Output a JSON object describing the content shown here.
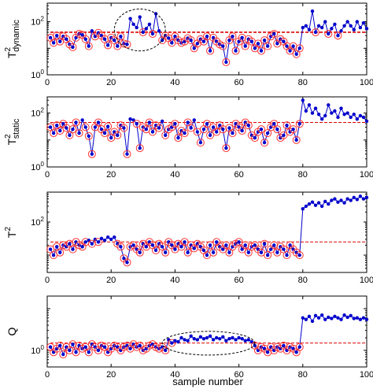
{
  "figure": {
    "x_tick_labels": [
      "0",
      "20",
      "40",
      "60",
      "80",
      "100"
    ],
    "x_axis_label": "sample number"
  },
  "chart_data": [
    {
      "type": "line",
      "ylabel": "T2 dynamic",
      "ylabel_main": "T",
      "ylabel_sup": "2",
      "ylabel_sub": "dynamic",
      "yscale": "log",
      "xlim": [
        0,
        100
      ],
      "ylim": [
        1,
        500
      ],
      "yticks": [
        {
          "value": 1,
          "base": "10",
          "exp": "0"
        },
        {
          "value": 100,
          "base": "10",
          "exp": "2"
        }
      ],
      "threshold": [
        40,
        40
      ],
      "annotation": {
        "shape": "dashed-ellipse",
        "x_range": [
          22,
          36
        ]
      },
      "x": [
        1,
        2,
        3,
        4,
        5,
        6,
        7,
        8,
        9,
        10,
        11,
        12,
        13,
        14,
        15,
        16,
        17,
        18,
        19,
        20,
        21,
        22,
        23,
        24,
        25,
        26,
        27,
        28,
        29,
        30,
        31,
        32,
        33,
        34,
        35,
        36,
        37,
        38,
        39,
        40,
        41,
        42,
        43,
        44,
        45,
        46,
        47,
        48,
        49,
        50,
        51,
        52,
        53,
        54,
        55,
        56,
        57,
        58,
        59,
        60,
        61,
        62,
        63,
        64,
        65,
        66,
        67,
        68,
        69,
        70,
        71,
        72,
        73,
        74,
        75,
        76,
        77,
        78,
        79,
        80,
        81,
        82,
        83,
        84,
        85,
        86,
        87,
        88,
        89,
        90,
        91,
        92,
        93,
        94,
        95,
        96,
        97,
        98,
        99,
        100
      ],
      "values": [
        25,
        16,
        30,
        18,
        28,
        22,
        14,
        11,
        25,
        35,
        32,
        22,
        12,
        45,
        28,
        38,
        30,
        22,
        13,
        25,
        20,
        12,
        28,
        15,
        14,
        130,
        80,
        60,
        150,
        40,
        55,
        80,
        35,
        200,
        45,
        20,
        30,
        24,
        16,
        28,
        20,
        16,
        18,
        24,
        20,
        10,
        15,
        22,
        18,
        28,
        8,
        25,
        18,
        14,
        12,
        3,
        20,
        28,
        8,
        18,
        25,
        12,
        22,
        18,
        10,
        15,
        8,
        20,
        12,
        28,
        35,
        15,
        22,
        18,
        12,
        8,
        12,
        6,
        10,
        60,
        70,
        50,
        250,
        40,
        70,
        60,
        100,
        35,
        55,
        80,
        30,
        45,
        70,
        100,
        70,
        50,
        100,
        60,
        90,
        55
      ]
    },
    {
      "type": "line",
      "ylabel": "T2 static",
      "ylabel_main": "T",
      "ylabel_sup": "2",
      "ylabel_sub": "static",
      "yscale": "log",
      "xlim": [
        0,
        100
      ],
      "ylim": [
        1,
        400
      ],
      "yticks": [
        {
          "value": 1,
          "base": "10",
          "exp": "0"
        },
        {
          "value": 100,
          "base": "10",
          "exp": "2"
        }
      ],
      "threshold": [
        45,
        45
      ],
      "x": [
        1,
        2,
        3,
        4,
        5,
        6,
        7,
        8,
        9,
        10,
        11,
        12,
        13,
        14,
        15,
        16,
        17,
        18,
        19,
        20,
        21,
        22,
        23,
        24,
        25,
        26,
        27,
        28,
        29,
        30,
        31,
        32,
        33,
        34,
        35,
        36,
        37,
        38,
        39,
        40,
        41,
        42,
        43,
        44,
        45,
        46,
        47,
        48,
        49,
        50,
        51,
        52,
        53,
        54,
        55,
        56,
        57,
        58,
        59,
        60,
        61,
        62,
        63,
        64,
        65,
        66,
        67,
        68,
        69,
        70,
        71,
        72,
        73,
        74,
        75,
        76,
        77,
        78,
        79,
        80,
        81,
        82,
        83,
        84,
        85,
        86,
        87,
        88,
        89,
        90,
        91,
        92,
        93,
        94,
        95,
        96,
        97,
        98,
        99,
        100
      ],
      "values": [
        30,
        18,
        35,
        22,
        40,
        28,
        15,
        25,
        45,
        18,
        55,
        30,
        14,
        3,
        30,
        45,
        25,
        18,
        32,
        12,
        20,
        15,
        35,
        28,
        3,
        60,
        55,
        40,
        5,
        30,
        25,
        45,
        20,
        35,
        28,
        50,
        15,
        25,
        30,
        40,
        12,
        22,
        18,
        45,
        28,
        55,
        20,
        8,
        25,
        40,
        15,
        30,
        20,
        35,
        25,
        5,
        28,
        18,
        40,
        30,
        22,
        45,
        35,
        15,
        12,
        20,
        25,
        8,
        18,
        30,
        40,
        25,
        12,
        15,
        35,
        20,
        25,
        10,
        40,
        300,
        120,
        200,
        100,
        150,
        90,
        60,
        80,
        200,
        100,
        120,
        70,
        150,
        90,
        100,
        70,
        90,
        60,
        80,
        70,
        50
      ]
    },
    {
      "type": "line",
      "ylabel": "T2",
      "ylabel_main": "T",
      "ylabel_sup": "2",
      "yscale": "log",
      "xlim": [
        0,
        100
      ],
      "ylim": [
        3,
        800
      ],
      "yticks": [
        {
          "value": 100,
          "base": "10",
          "exp": "2"
        }
      ],
      "threshold": [
        25,
        25
      ],
      "x": [
        1,
        2,
        3,
        4,
        5,
        6,
        7,
        8,
        9,
        10,
        11,
        12,
        13,
        14,
        15,
        16,
        17,
        18,
        19,
        20,
        21,
        22,
        23,
        24,
        25,
        26,
        27,
        28,
        29,
        30,
        31,
        32,
        33,
        34,
        35,
        36,
        37,
        38,
        39,
        40,
        41,
        42,
        43,
        44,
        45,
        46,
        47,
        48,
        49,
        50,
        51,
        52,
        53,
        54,
        55,
        56,
        57,
        58,
        59,
        60,
        61,
        62,
        63,
        64,
        65,
        66,
        67,
        68,
        69,
        70,
        71,
        72,
        73,
        74,
        75,
        76,
        77,
        78,
        79,
        80,
        81,
        82,
        83,
        84,
        85,
        86,
        87,
        88,
        89,
        90,
        91,
        92,
        93,
        94,
        95,
        96,
        97,
        98,
        99,
        100
      ],
      "values": [
        15,
        10,
        18,
        12,
        20,
        18,
        22,
        15,
        25,
        20,
        18,
        25,
        28,
        22,
        30,
        25,
        32,
        28,
        35,
        30,
        35,
        22,
        18,
        8,
        6,
        18,
        20,
        15,
        12,
        22,
        18,
        25,
        20,
        14,
        22,
        18,
        12,
        25,
        20,
        15,
        22,
        18,
        25,
        12,
        20,
        16,
        22,
        18,
        14,
        10,
        20,
        12,
        25,
        18,
        15,
        20,
        12,
        18,
        22,
        25,
        15,
        20,
        12,
        18,
        20,
        15,
        12,
        22,
        10,
        15,
        20,
        12,
        18,
        15,
        10,
        20,
        15,
        12,
        10,
        250,
        300,
        350,
        400,
        320,
        380,
        300,
        420,
        350,
        450,
        500,
        400,
        450,
        380,
        500,
        450,
        550,
        480,
        600,
        500,
        550
      ]
    },
    {
      "type": "line",
      "ylabel": "Q",
      "yscale": "log",
      "xlim": [
        0,
        100
      ],
      "ylim": [
        0.4,
        20
      ],
      "yticks": [
        {
          "value": 1,
          "base": "10",
          "exp": "0"
        }
      ],
      "threshold": [
        1.5,
        1.5
      ],
      "annotation": {
        "shape": "dashed-ellipse",
        "x_range": [
          37,
          64
        ]
      },
      "x": [
        1,
        2,
        3,
        4,
        5,
        6,
        7,
        8,
        9,
        10,
        11,
        12,
        13,
        14,
        15,
        16,
        17,
        18,
        19,
        20,
        21,
        22,
        23,
        24,
        25,
        26,
        27,
        28,
        29,
        30,
        31,
        32,
        33,
        34,
        35,
        36,
        37,
        38,
        39,
        40,
        41,
        42,
        43,
        44,
        45,
        46,
        47,
        48,
        49,
        50,
        51,
        52,
        53,
        54,
        55,
        56,
        57,
        58,
        59,
        60,
        61,
        62,
        63,
        64,
        65,
        66,
        67,
        68,
        69,
        70,
        71,
        72,
        73,
        74,
        75,
        76,
        77,
        78,
        79,
        80,
        81,
        82,
        83,
        84,
        85,
        86,
        87,
        88,
        89,
        90,
        91,
        92,
        93,
        94,
        95,
        96,
        97,
        98,
        99,
        100
      ],
      "values": [
        1.2,
        0.9,
        1.1,
        1.3,
        0.8,
        1.2,
        1.0,
        1.4,
        0.9,
        1.3,
        1.1,
        1.2,
        0.9,
        1.4,
        1.2,
        1.0,
        1.3,
        1.2,
        0.9,
        1.1,
        1.3,
        1.2,
        1.0,
        1.2,
        1.3,
        1.1,
        1.4,
        1.2,
        1.3,
        1.0,
        1.1,
        1.3,
        1.4,
        1.2,
        1.1,
        1.2,
        1.0,
        1.8,
        1.5,
        1.7,
        1.6,
        2.0,
        1.8,
        1.7,
        2.2,
        1.9,
        1.8,
        2.1,
        1.9,
        2.0,
        2.2,
        1.8,
        2.0,
        1.9,
        2.1,
        1.7,
        1.9,
        2.0,
        1.8,
        2.0,
        1.9,
        1.7,
        1.8,
        1.6,
        1.3,
        1.0,
        1.2,
        1.1,
        0.9,
        1.2,
        1.0,
        1.2,
        1.1,
        1.3,
        1.0,
        1.2,
        1.1,
        0.9,
        1.2,
        6.0,
        5.5,
        6.5,
        5.0,
        6.8,
        6.0,
        7.0,
        5.5,
        6.2,
        5.8,
        6.5,
        6.0,
        5.5,
        7.0,
        6.2,
        6.8,
        5.8,
        6.0,
        5.5,
        6.0,
        5.5
      ]
    }
  ],
  "colors": {
    "series": "#0000cc",
    "marker_fill": "#0000cc",
    "in_control_ring": "#ff3030",
    "threshold": "#dd0000",
    "annotation": "#000000",
    "axes": "#000000"
  }
}
